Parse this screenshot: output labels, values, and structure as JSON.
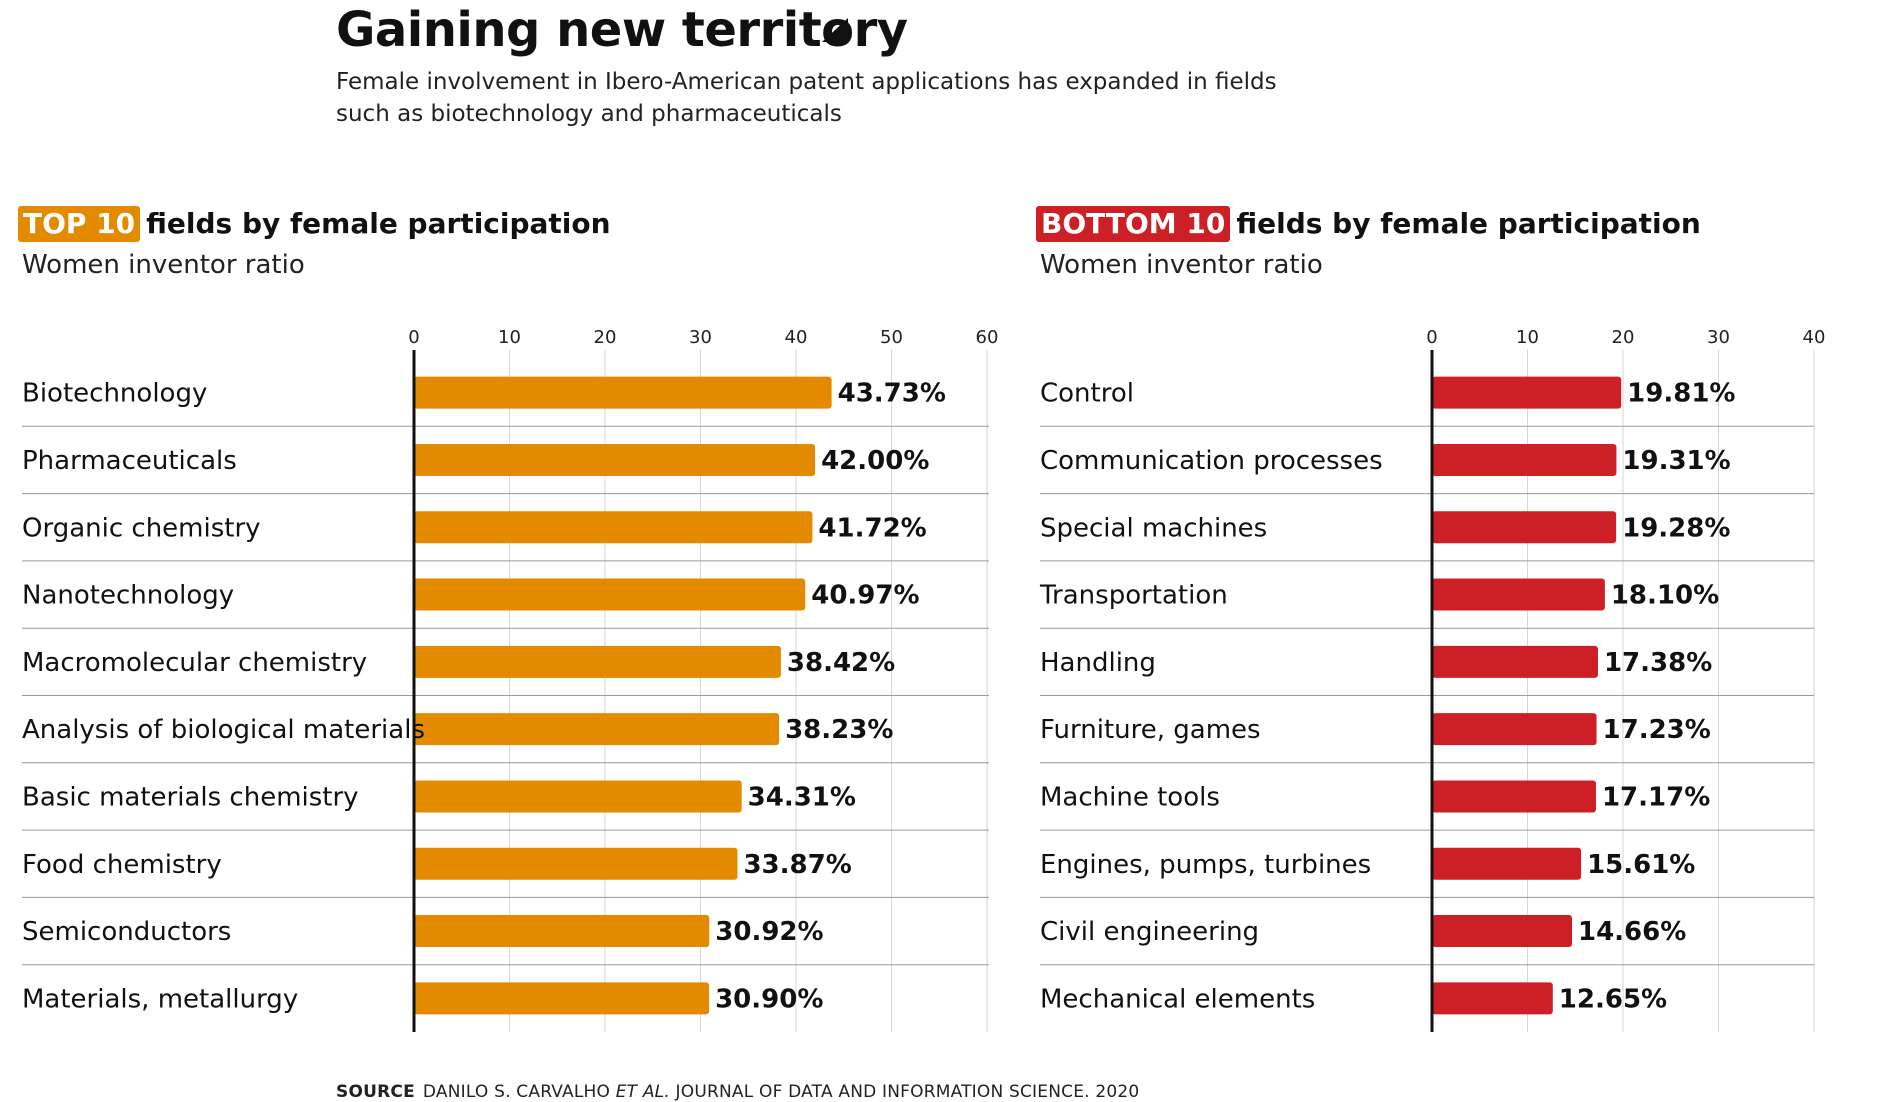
{
  "header": {
    "title": "Gaining new territory",
    "subtitle": "Female involvement in Ibero-American patent applications has expanded in fields such as biotechnology and pharmaceuticals"
  },
  "left": {
    "badge": "TOP 10",
    "heading_rest": "fields by female participation",
    "subheading": "Women inventor ratio"
  },
  "right": {
    "badge": "BOTTOM 10",
    "heading_rest": "fields by female participation",
    "subheading": "Women inventor ratio"
  },
  "source": {
    "label": "SOURCE",
    "author": "DANILO S. CARVALHO",
    "etal": "ET AL.",
    "rest": "JOURNAL OF DATA AND INFORMATION SCIENCE. 2020"
  },
  "colors": {
    "top": "#E38A00",
    "bottom": "#CC2026",
    "grid": "#d6d6d6",
    "divider": "#9a9a9a",
    "axis": "#111111"
  },
  "chart_data": [
    {
      "type": "bar",
      "orientation": "horizontal",
      "title": "TOP 10 fields by female participation",
      "xlabel": "Women inventor ratio",
      "xlim": [
        0,
        60
      ],
      "xticks": [
        0,
        10,
        20,
        30,
        40,
        50,
        60
      ],
      "grid": true,
      "categories": [
        "Biotechnology",
        "Pharmaceuticals",
        "Organic chemistry",
        "Nanotechnology",
        "Macromolecular chemistry",
        "Analysis of biological materials",
        "Basic materials chemistry",
        "Food chemistry",
        "Semiconductors",
        "Materials, metallurgy"
      ],
      "values": [
        43.73,
        42.0,
        41.72,
        40.97,
        38.42,
        38.23,
        34.31,
        33.87,
        30.92,
        30.9
      ],
      "labels": [
        "43.73%",
        "42.00%",
        "41.72%",
        "40.97%",
        "38.42%",
        "38.23%",
        "34.31%",
        "33.87%",
        "30.92%",
        "30.90%"
      ]
    },
    {
      "type": "bar",
      "orientation": "horizontal",
      "title": "BOTTOM 10 fields by female participation",
      "xlabel": "Women inventor ratio",
      "xlim": [
        0,
        40
      ],
      "xticks": [
        0,
        10,
        20,
        30,
        40
      ],
      "grid": true,
      "categories": [
        "Control",
        "Communication processes",
        "Special machines",
        "Transportation",
        "Handling",
        "Furniture, games",
        "Machine tools",
        "Engines, pumps, turbines",
        "Civil engineering",
        "Mechanical elements"
      ],
      "values": [
        19.81,
        19.31,
        19.28,
        18.1,
        17.38,
        17.23,
        17.17,
        15.61,
        14.66,
        12.65
      ],
      "labels": [
        "19.81%",
        "19.31%",
        "19.28%",
        "18.10%",
        "17.38%",
        "17.23%",
        "17.17%",
        "15.61%",
        "14.66%",
        "12.65%"
      ]
    }
  ]
}
